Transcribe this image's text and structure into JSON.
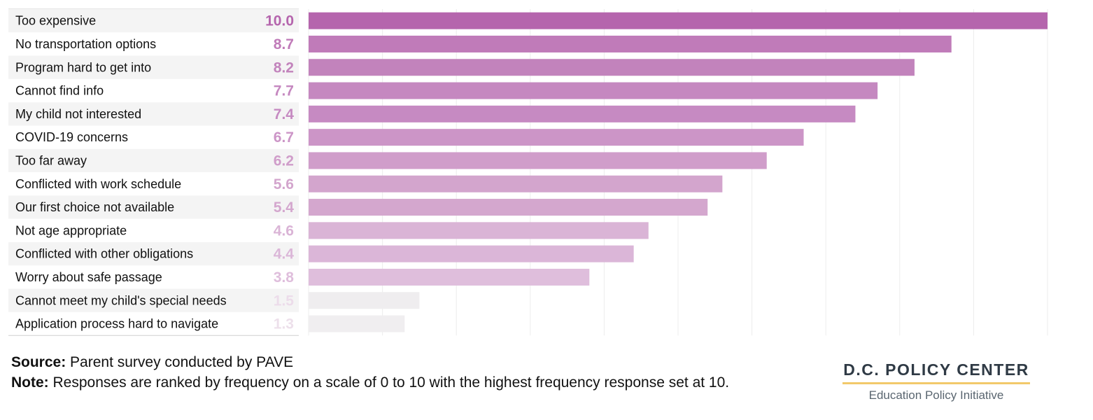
{
  "chart_data": {
    "type": "bar",
    "orientation": "horizontal",
    "categories": [
      "Too expensive",
      "No transportation options",
      "Program hard to get into",
      "Cannot find info",
      "My child not interested",
      "COVID-19 concerns",
      "Too far away",
      "Conflicted with work schedule",
      "Our first choice not available",
      "Not age appropriate",
      "Conflicted with other obligations",
      "Worry about safe passage",
      "Cannot meet my child's special needs",
      "Application process hard to navigate"
    ],
    "values": [
      10.0,
      8.7,
      8.2,
      7.7,
      7.4,
      6.7,
      6.2,
      5.6,
      5.4,
      4.6,
      4.4,
      3.8,
      1.5,
      1.3
    ],
    "value_labels": [
      "10.0",
      "8.7",
      "8.2",
      "7.7",
      "7.4",
      "6.7",
      "6.2",
      "5.6",
      "5.4",
      "4.6",
      "4.4",
      "3.8",
      "1.5",
      "1.3"
    ],
    "xlim": [
      0,
      10
    ],
    "grid": true,
    "bar_colors": [
      "#b565ad",
      "#c07bb9",
      "#c283bc",
      "#c588c0",
      "#c68ac2",
      "#cc95c7",
      "#d09dca",
      "#d3a5cd",
      "#d4a7ce",
      "#dab4d6",
      "#dbb6d8",
      "#dfbedc",
      "#efedef",
      "#f0eef0"
    ],
    "label_colors": [
      "#b565ad",
      "#c07bb9",
      "#c283bc",
      "#c588c0",
      "#c68ac2",
      "#cc95c7",
      "#d09dca",
      "#d3a5cd",
      "#d4a7ce",
      "#dab4d6",
      "#dbb6d8",
      "#dfbedc",
      "#ecdcea",
      "#ede0eb"
    ]
  },
  "footer": {
    "source_label": "Source:",
    "source_text": "Parent survey conducted by PAVE",
    "note_label": "Note:",
    "note_text": "Responses are ranked by frequency on a scale of 0 to 10 with the highest frequency response set at 10."
  },
  "logo": {
    "title": "D.C. POLICY CENTER",
    "subtitle": "Education Policy Initiative",
    "accent_color": "#f2c96b"
  }
}
